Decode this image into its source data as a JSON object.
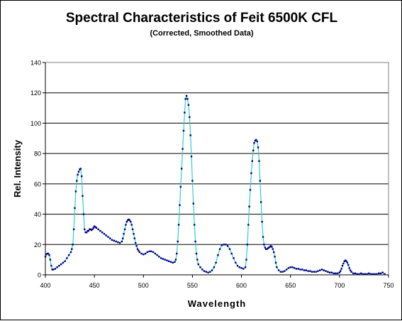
{
  "chart_data": {
    "type": "scatter",
    "title": "Spectral Characteristics of Feit 6500K CFL",
    "subtitle": "(Corrected, Smoothed Data)",
    "xlabel": "Wavelength",
    "ylabel": "Rel. Intensity",
    "xlim": [
      400,
      750
    ],
    "ylim": [
      0,
      140
    ],
    "x_ticks": [
      "400",
      "450",
      "500",
      "550",
      "600",
      "650",
      "700",
      "750"
    ],
    "y_ticks": [
      "0",
      "20",
      "40",
      "60",
      "80",
      "100",
      "120",
      "140"
    ],
    "grid": "horizontal",
    "legend": "none",
    "line_color": "#33cccc",
    "marker_color": "#000080",
    "series": [
      {
        "points": [
          [
            400,
            12
          ],
          [
            401,
            13.5
          ],
          [
            402,
            14
          ],
          [
            403,
            14
          ],
          [
            404,
            13
          ],
          [
            405,
            10
          ],
          [
            406,
            6
          ],
          [
            407,
            3.5
          ],
          [
            408,
            3.5
          ],
          [
            410,
            4
          ],
          [
            412,
            5
          ],
          [
            414,
            6
          ],
          [
            416,
            7
          ],
          [
            418,
            8
          ],
          [
            420,
            9
          ],
          [
            422,
            11
          ],
          [
            424,
            13
          ],
          [
            426,
            15
          ],
          [
            427,
            17
          ],
          [
            428,
            20
          ],
          [
            429,
            30
          ],
          [
            430,
            44
          ],
          [
            431,
            55
          ],
          [
            432,
            62
          ],
          [
            433,
            66
          ],
          [
            434,
            68
          ],
          [
            435,
            69.5
          ],
          [
            436,
            70
          ],
          [
            437,
            65
          ],
          [
            438,
            52
          ],
          [
            439,
            40
          ],
          [
            440,
            30
          ],
          [
            441,
            28
          ],
          [
            442,
            28
          ],
          [
            443,
            29
          ],
          [
            444,
            29
          ],
          [
            445,
            30
          ],
          [
            446,
            30
          ],
          [
            447,
            29.5
          ],
          [
            448,
            30
          ],
          [
            449,
            31
          ],
          [
            450,
            32
          ],
          [
            451,
            31.5
          ],
          [
            452,
            31
          ],
          [
            454,
            30
          ],
          [
            456,
            29
          ],
          [
            458,
            28
          ],
          [
            460,
            27
          ],
          [
            462,
            26
          ],
          [
            464,
            25
          ],
          [
            466,
            24
          ],
          [
            468,
            23
          ],
          [
            470,
            22.5
          ],
          [
            472,
            22
          ],
          [
            474,
            21.5
          ],
          [
            476,
            21
          ],
          [
            478,
            22
          ],
          [
            479,
            24
          ],
          [
            480,
            27
          ],
          [
            481,
            30
          ],
          [
            482,
            33
          ],
          [
            483,
            35
          ],
          [
            484,
            36
          ],
          [
            485,
            36.5
          ],
          [
            486,
            36
          ],
          [
            487,
            35
          ],
          [
            488,
            33
          ],
          [
            489,
            30
          ],
          [
            490,
            27
          ],
          [
            491,
            24
          ],
          [
            492,
            21
          ],
          [
            493,
            19
          ],
          [
            494,
            17
          ],
          [
            495,
            16
          ],
          [
            496,
            15
          ],
          [
            498,
            14
          ],
          [
            500,
            13.5
          ],
          [
            502,
            14
          ],
          [
            504,
            15
          ],
          [
            506,
            15.5
          ],
          [
            508,
            15.5
          ],
          [
            510,
            15
          ],
          [
            512,
            14
          ],
          [
            514,
            13
          ],
          [
            516,
            12
          ],
          [
            518,
            11
          ],
          [
            520,
            10.5
          ],
          [
            522,
            10
          ],
          [
            524,
            9.5
          ],
          [
            526,
            9
          ],
          [
            528,
            8.5
          ],
          [
            530,
            8
          ],
          [
            532,
            8.5
          ],
          [
            533,
            10
          ],
          [
            534,
            14
          ],
          [
            535,
            22
          ],
          [
            536,
            33
          ],
          [
            537,
            46
          ],
          [
            538,
            58
          ],
          [
            539,
            70
          ],
          [
            540,
            83
          ],
          [
            541,
            95
          ],
          [
            542,
            107
          ],
          [
            543,
            116
          ],
          [
            544,
            118
          ],
          [
            545,
            116
          ],
          [
            546,
            112
          ],
          [
            547,
            104
          ],
          [
            548,
            92
          ],
          [
            549,
            78
          ],
          [
            550,
            62
          ],
          [
            551,
            47
          ],
          [
            552,
            33
          ],
          [
            553,
            22
          ],
          [
            554,
            14
          ],
          [
            555,
            10
          ],
          [
            556,
            7
          ],
          [
            558,
            5
          ],
          [
            560,
            3.5
          ],
          [
            562,
            2.5
          ],
          [
            564,
            2
          ],
          [
            566,
            1.5
          ],
          [
            568,
            2
          ],
          [
            570,
            3
          ],
          [
            572,
            5
          ],
          [
            574,
            8
          ],
          [
            576,
            13
          ],
          [
            578,
            17
          ],
          [
            580,
            19.5
          ],
          [
            582,
            20
          ],
          [
            584,
            20
          ],
          [
            586,
            19
          ],
          [
            588,
            17
          ],
          [
            590,
            14
          ],
          [
            592,
            11
          ],
          [
            594,
            8
          ],
          [
            596,
            6
          ],
          [
            598,
            5
          ],
          [
            600,
            4.5
          ],
          [
            602,
            4
          ],
          [
            604,
            5
          ],
          [
            605,
            10
          ],
          [
            606,
            20
          ],
          [
            607,
            33
          ],
          [
            608,
            45
          ],
          [
            609,
            56
          ],
          [
            610,
            67
          ],
          [
            611,
            75
          ],
          [
            612,
            82
          ],
          [
            613,
            87
          ],
          [
            614,
            88.5
          ],
          [
            615,
            89
          ],
          [
            616,
            88
          ],
          [
            617,
            84
          ],
          [
            618,
            75
          ],
          [
            619,
            62
          ],
          [
            620,
            48
          ],
          [
            621,
            35
          ],
          [
            622,
            25
          ],
          [
            623,
            20
          ],
          [
            624,
            18
          ],
          [
            625,
            17
          ],
          [
            626,
            17
          ],
          [
            627,
            17.5
          ],
          [
            628,
            18
          ],
          [
            629,
            18.5
          ],
          [
            630,
            19
          ],
          [
            631,
            18.5
          ],
          [
            632,
            17
          ],
          [
            633,
            15
          ],
          [
            634,
            12
          ],
          [
            635,
            8
          ],
          [
            636,
            5
          ],
          [
            638,
            3
          ],
          [
            640,
            2
          ],
          [
            642,
            2
          ],
          [
            644,
            2.5
          ],
          [
            646,
            3.5
          ],
          [
            648,
            4.5
          ],
          [
            650,
            5
          ],
          [
            652,
            5
          ],
          [
            654,
            4.5
          ],
          [
            656,
            4
          ],
          [
            658,
            4
          ],
          [
            660,
            3.5
          ],
          [
            662,
            3.5
          ],
          [
            664,
            3
          ],
          [
            666,
            3
          ],
          [
            668,
            2.5
          ],
          [
            670,
            2.5
          ],
          [
            672,
            2
          ],
          [
            674,
            2
          ],
          [
            676,
            2
          ],
          [
            678,
            2.5
          ],
          [
            680,
            3
          ],
          [
            682,
            3.5
          ],
          [
            684,
            3
          ],
          [
            686,
            2.5
          ],
          [
            688,
            2
          ],
          [
            690,
            1.5
          ],
          [
            692,
            1.5
          ],
          [
            694,
            1
          ],
          [
            696,
            1
          ],
          [
            698,
            1
          ],
          [
            700,
            1.5
          ],
          [
            701,
            2.5
          ],
          [
            702,
            4
          ],
          [
            703,
            6
          ],
          [
            704,
            7.5
          ],
          [
            705,
            9
          ],
          [
            706,
            9.5
          ],
          [
            707,
            9
          ],
          [
            708,
            8
          ],
          [
            709,
            6.5
          ],
          [
            710,
            4.5
          ],
          [
            711,
            3
          ],
          [
            712,
            2
          ],
          [
            714,
            1
          ],
          [
            716,
            1
          ],
          [
            718,
            0.5
          ],
          [
            720,
            0.5
          ],
          [
            722,
            1
          ],
          [
            724,
            0.5
          ],
          [
            726,
            0.5
          ],
          [
            728,
            0.5
          ],
          [
            730,
            1
          ],
          [
            732,
            0.5
          ],
          [
            734,
            0.5
          ],
          [
            736,
            0.5
          ],
          [
            738,
            0.5
          ],
          [
            740,
            1
          ],
          [
            742,
            1
          ],
          [
            744,
            1.5
          ],
          [
            746,
            0.5
          ]
        ]
      }
    ]
  }
}
